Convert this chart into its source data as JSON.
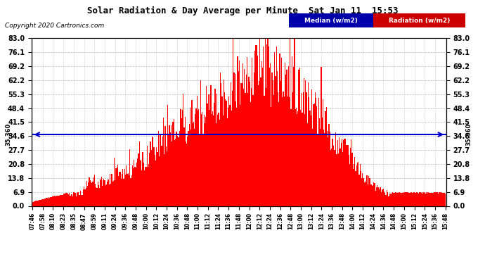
{
  "title": "Solar Radiation & Day Average per Minute  Sat Jan 11  15:53",
  "copyright": "Copyright 2020 Cartronics.com",
  "median_value": 35.36,
  "yticks": [
    0.0,
    6.9,
    13.8,
    20.8,
    27.7,
    34.6,
    41.5,
    48.4,
    55.3,
    62.2,
    69.2,
    76.1,
    83.0
  ],
  "ymax": 83.0,
  "ymin": 0.0,
  "bar_color": "#FF0000",
  "median_color": "#0000CC",
  "bg_color": "#FFFFFF",
  "grid_color": "#AAAAAA",
  "legend_median_bg": "#0000AA",
  "legend_radiation_bg": "#CC0000",
  "xtick_labels": [
    "07:46",
    "07:58",
    "08:10",
    "08:23",
    "08:35",
    "08:47",
    "08:59",
    "09:11",
    "09:24",
    "09:36",
    "09:48",
    "10:00",
    "10:12",
    "10:24",
    "10:36",
    "10:48",
    "11:00",
    "11:12",
    "11:24",
    "11:36",
    "11:48",
    "12:00",
    "12:12",
    "12:24",
    "12:36",
    "12:48",
    "13:00",
    "13:12",
    "13:24",
    "13:36",
    "13:48",
    "14:00",
    "14:12",
    "14:24",
    "14:36",
    "14:48",
    "15:00",
    "15:12",
    "15:24",
    "15:36",
    "15:48"
  ],
  "n_bars": 480,
  "profile": [
    2.0,
    2.2,
    2.5,
    2.8,
    3.0,
    3.2,
    3.5,
    3.8,
    4.0,
    4.2,
    4.5,
    4.8,
    5.0,
    5.2,
    5.5,
    5.5,
    5.8,
    6.0,
    6.2,
    6.5,
    6.8,
    7.0,
    7.2,
    7.0,
    6.8,
    7.2,
    7.5,
    8.0,
    8.5,
    9.0,
    10.0,
    11.0,
    16.0,
    18.0,
    16.5,
    16.0,
    17.0,
    14.0,
    13.0,
    14.0,
    15.0,
    14.5,
    15.5,
    14.0,
    15.0,
    16.0,
    17.0,
    18.0,
    19.5,
    21.0,
    20.5,
    19.0,
    20.0,
    21.5,
    22.5,
    23.5,
    22.0,
    23.0,
    24.0,
    24.5,
    25.5,
    26.5,
    27.5,
    26.0,
    27.5,
    29.0,
    30.5,
    32.0,
    33.5,
    35.0,
    36.5,
    35.0,
    36.0,
    37.5,
    39.0,
    40.5,
    39.0,
    40.5,
    42.0,
    43.5,
    45.0,
    44.5,
    46.0,
    47.5,
    46.0,
    47.5,
    49.0,
    48.0,
    49.5,
    51.0,
    52.5,
    51.5,
    53.0,
    54.5,
    53.0,
    54.5,
    56.0,
    55.0,
    56.5,
    58.0,
    59.5,
    61.0,
    62.5,
    64.0,
    63.0,
    62.5,
    64.0,
    65.5,
    67.0,
    66.0,
    67.5,
    69.0,
    68.5,
    70.0,
    71.5,
    73.0,
    72.0,
    73.5,
    75.0,
    74.0,
    75.5,
    77.0,
    76.0,
    77.5,
    79.0,
    78.0,
    79.5,
    81.0,
    80.0,
    81.5,
    83.0,
    82.0,
    81.5,
    83.0,
    82.5,
    81.5,
    82.0,
    80.5,
    79.0,
    80.5,
    82.0,
    81.0,
    82.5,
    81.5,
    80.0,
    81.5,
    80.5,
    79.0,
    78.5,
    80.0,
    79.5,
    78.0,
    77.0,
    75.5,
    74.0,
    72.5,
    71.0,
    69.5,
    68.0,
    66.5,
    65.0,
    63.5,
    62.0,
    60.5,
    59.0,
    57.5,
    56.0,
    54.5,
    53.0,
    51.5,
    50.0,
    48.5,
    47.0,
    45.5,
    44.0,
    42.5,
    41.0,
    39.5,
    38.0,
    36.5,
    35.0,
    33.5,
    32.0,
    30.5,
    29.0,
    27.5,
    26.0,
    24.5,
    23.0,
    21.5,
    20.0,
    19.0,
    18.0,
    17.0,
    16.0,
    15.0,
    14.0,
    13.0,
    12.0,
    11.0,
    10.5,
    10.0,
    9.5,
    9.0,
    8.5,
    8.0,
    7.5,
    7.0,
    6.9,
    6.9,
    6.9,
    6.9,
    6.9,
    6.9,
    6.9,
    6.9,
    6.9,
    6.9,
    6.9,
    6.9,
    6.9,
    6.9,
    6.9,
    6.9,
    6.9,
    6.9,
    6.9,
    6.9,
    6.9,
    6.9,
    6.9,
    6.9,
    6.9,
    6.9,
    6.9,
    6.9,
    6.9,
    6.9,
    6.9,
    6.9
  ]
}
